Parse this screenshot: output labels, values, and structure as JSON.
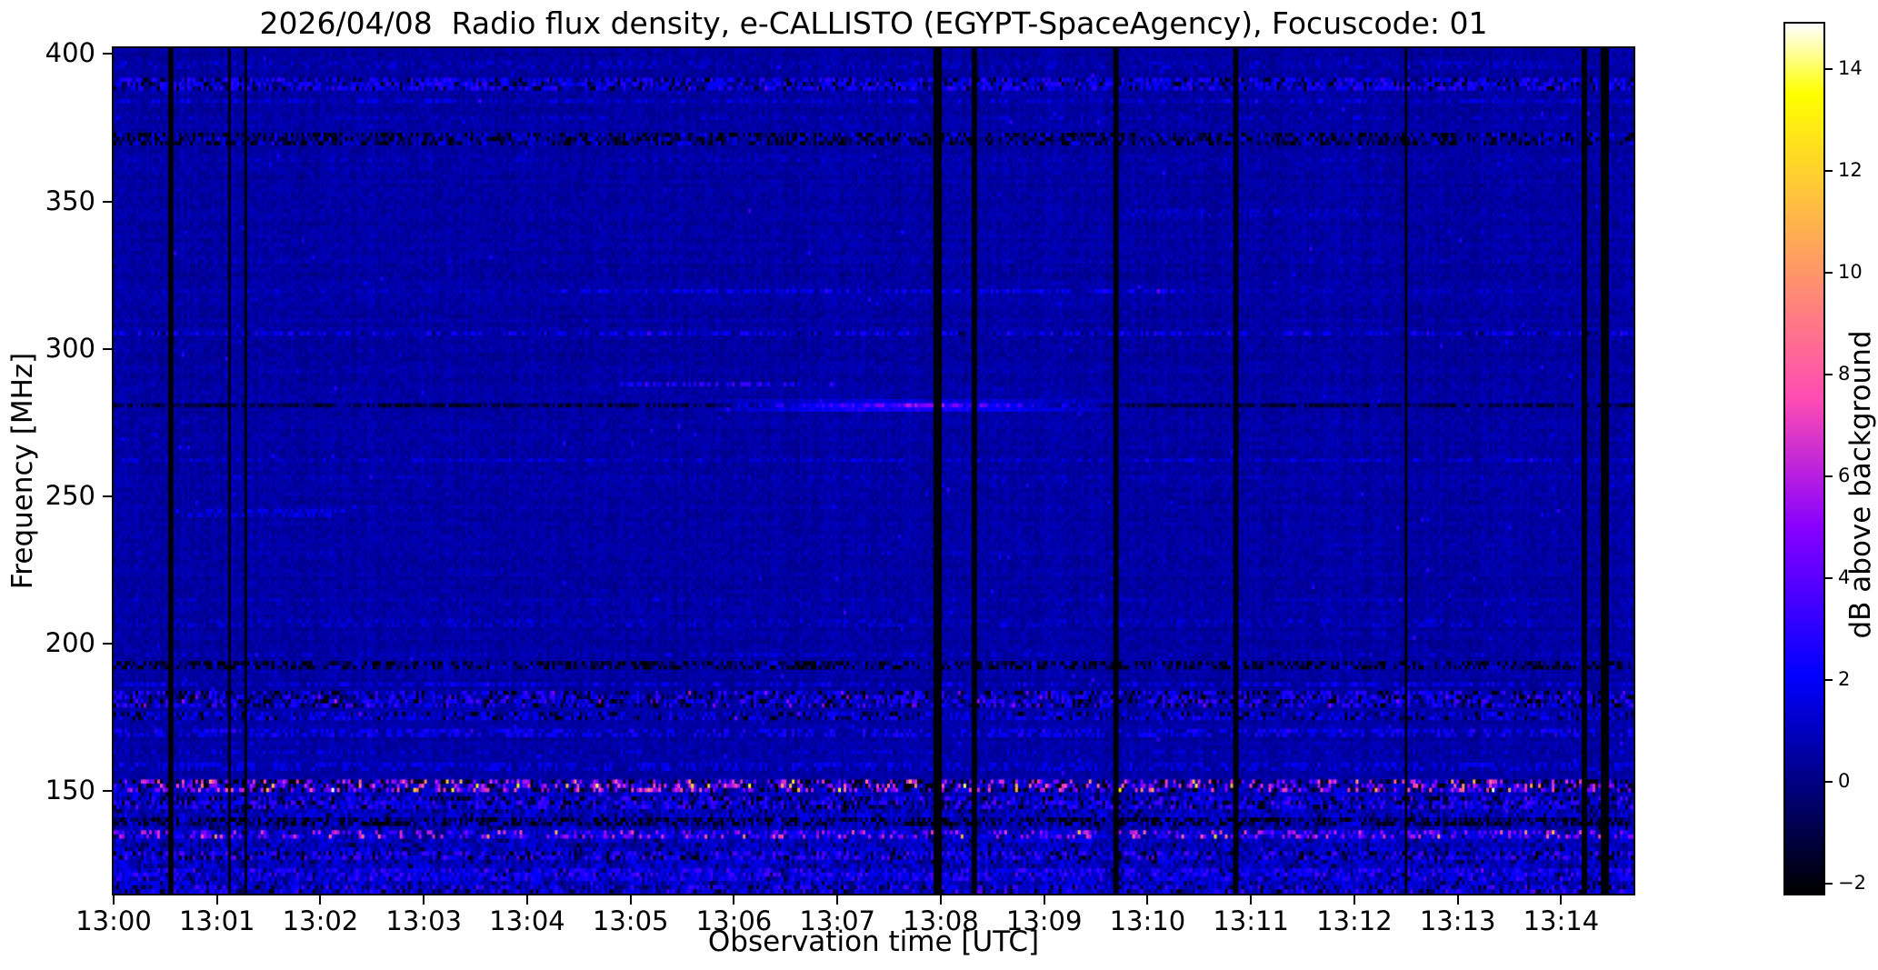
{
  "chart_data": {
    "type": "heatmap",
    "title": "2026/04/08  Radio flux density, e-CALLISTO (EGYPT-SpaceAgency), Focuscode: 01",
    "xlabel": "Observation time [UTC]",
    "ylabel": "Frequency [MHz]",
    "x_range_minutes": [
      0,
      14.7
    ],
    "y_range_mhz": [
      115,
      402
    ],
    "grid": false,
    "x_ticks": [
      {
        "m": 0,
        "label": "13:00"
      },
      {
        "m": 1,
        "label": "13:01"
      },
      {
        "m": 2,
        "label": "13:02"
      },
      {
        "m": 3,
        "label": "13:03"
      },
      {
        "m": 4,
        "label": "13:04"
      },
      {
        "m": 5,
        "label": "13:05"
      },
      {
        "m": 6,
        "label": "13:06"
      },
      {
        "m": 7,
        "label": "13:07"
      },
      {
        "m": 8,
        "label": "13:08"
      },
      {
        "m": 9,
        "label": "13:09"
      },
      {
        "m": 10,
        "label": "13:10"
      },
      {
        "m": 11,
        "label": "13:11"
      },
      {
        "m": 12,
        "label": "13:12"
      },
      {
        "m": 13,
        "label": "13:13"
      },
      {
        "m": 14,
        "label": "13:14"
      }
    ],
    "y_ticks": [
      {
        "v": 400,
        "label": "400"
      },
      {
        "v": 350,
        "label": "350"
      },
      {
        "v": 300,
        "label": "300"
      },
      {
        "v": 250,
        "label": "250"
      },
      {
        "v": 200,
        "label": "200"
      },
      {
        "v": 150,
        "label": "150"
      }
    ],
    "colorbar": {
      "label": "dB above background",
      "vmin": -2.2,
      "vmax": 14.9,
      "colormap": "gnuplot2",
      "ticks": [
        {
          "v": 14,
          "label": "14"
        },
        {
          "v": 12,
          "label": "12"
        },
        {
          "v": 10,
          "label": "10"
        },
        {
          "v": 8,
          "label": "8"
        },
        {
          "v": 6,
          "label": "6"
        },
        {
          "v": 4,
          "label": "4"
        },
        {
          "v": 2,
          "label": "2"
        },
        {
          "v": 0,
          "label": "0"
        },
        {
          "v": -2,
          "label": "−2"
        }
      ],
      "stops": [
        [
          0.0,
          0,
          0,
          0
        ],
        [
          0.125,
          0,
          0,
          128
        ],
        [
          0.25,
          0,
          0,
          255
        ],
        [
          0.34,
          72,
          0,
          255
        ],
        [
          0.42,
          135,
          0,
          255
        ],
        [
          0.5,
          199,
          41,
          214
        ],
        [
          0.57,
          255,
          77,
          179
        ],
        [
          0.66,
          255,
          122,
          133
        ],
        [
          0.75,
          255,
          168,
          87
        ],
        [
          0.84,
          255,
          214,
          41
        ],
        [
          0.92,
          255,
          255,
          0
        ],
        [
          0.96,
          255,
          255,
          128
        ],
        [
          1.0,
          255,
          255,
          255
        ]
      ]
    },
    "background_level_db": 0.55,
    "sparkle_prob": 0.004,
    "sparkle_amp": 2.5,
    "features": {
      "burst": {
        "f": 280.5,
        "f_sigma": 0.9,
        "t_peak": 7.7,
        "t_sigma": 1.05,
        "t0": 5.8,
        "t1": 9.8,
        "amp": 4.8,
        "description": "narrowband bright emission streak near 280 MHz between ~13:06 and ~13:09"
      },
      "vertical_dropouts": [
        {
          "t": 0.55,
          "w": 0.05
        },
        {
          "t": 1.12,
          "w": 0.035
        },
        {
          "t": 1.28,
          "w": 0.03
        },
        {
          "t": 7.97,
          "w": 0.06
        },
        {
          "t": 8.33,
          "w": 0.05
        },
        {
          "t": 9.7,
          "w": 0.05
        },
        {
          "t": 10.85,
          "w": 0.04
        },
        {
          "t": 12.5,
          "w": 0.05
        },
        {
          "t": 14.22,
          "w": 0.05
        },
        {
          "t": 14.42,
          "w": 0.06
        }
      ],
      "horizontal_bands": [
        {
          "f": 396,
          "hw": 1.2,
          "amp": 0.7,
          "density": 0.35
        },
        {
          "f": 390,
          "hw": 2.2,
          "amp": 1.8,
          "density": 0.6
        },
        {
          "f": 390,
          "hw": 2.2,
          "amp": -2.6,
          "density": 0.22
        },
        {
          "f": 384,
          "hw": 1.2,
          "amp": 0.9,
          "density": 0.35
        },
        {
          "f": 378,
          "hw": 1.0,
          "amp": 0.7,
          "density": 0.3
        },
        {
          "f": 371,
          "hw": 1.6,
          "amp": -2.4,
          "density": 0.45
        },
        {
          "f": 371,
          "hw": 1.6,
          "amp": 1.1,
          "density": 0.3
        },
        {
          "f": 364,
          "hw": 0.9,
          "amp": 0.6,
          "density": 0.3
        },
        {
          "f": 346,
          "hw": 1.0,
          "amp": 0.8,
          "density": 0.3,
          "t0": 9.8,
          "t1": 12.3
        },
        {
          "f": 330,
          "hw": 0.8,
          "amp": 0.5,
          "density": 0.25
        },
        {
          "f": 320,
          "hw": 0.9,
          "amp": 1.2,
          "density": 0.5,
          "t0": 4.3,
          "t1": 10.4
        },
        {
          "f": 320,
          "hw": 0.9,
          "amp": 0.5,
          "density": 0.3
        },
        {
          "f": 305,
          "hw": 1.1,
          "amp": 1.5,
          "density": 0.45
        },
        {
          "f": 305,
          "hw": 1.1,
          "amp": -1.2,
          "density": 0.15
        },
        {
          "f": 288,
          "hw": 0.9,
          "amp": 2.2,
          "density": 0.5,
          "t0": 4.9,
          "t1": 7.0
        },
        {
          "f": 281,
          "hw": 0.8,
          "amp": -1.6,
          "density": 0.75
        },
        {
          "f": 262,
          "hw": 0.9,
          "amp": 0.8,
          "density": 0.35
        },
        {
          "f": 256,
          "hw": 0.7,
          "amp": 0.5,
          "density": 0.25
        },
        {
          "f": 244,
          "hw": 0.9,
          "amp": 1.1,
          "density": 0.45,
          "t0": 0.7,
          "t1": 2.3
        },
        {
          "f": 230,
          "hw": 0.8,
          "amp": 0.4,
          "density": 0.2
        },
        {
          "f": 214,
          "hw": 0.8,
          "amp": 0.5,
          "density": 0.25
        },
        {
          "f": 207,
          "hw": 1.0,
          "amp": 0.8,
          "density": 0.35
        },
        {
          "f": 196,
          "hw": 0.8,
          "amp": 0.7,
          "density": 0.4
        },
        {
          "f": 192,
          "hw": 1.4,
          "amp": -2.4,
          "density": 0.5
        },
        {
          "f": 192,
          "hw": 1.4,
          "amp": 1.0,
          "density": 0.35
        },
        {
          "f": 186,
          "hw": 1.1,
          "amp": 1.2,
          "density": 0.4
        },
        {
          "f": 181,
          "hw": 2.4,
          "amp": 2.0,
          "density": 0.5,
          "hot_prob": 0.04,
          "hot_amp": 2.5
        },
        {
          "f": 181,
          "hw": 2.4,
          "amp": -2.6,
          "density": 0.3
        },
        {
          "f": 175,
          "hw": 1.8,
          "amp": 1.4,
          "density": 0.5
        },
        {
          "f": 175,
          "hw": 1.8,
          "amp": -2.2,
          "density": 0.25
        },
        {
          "f": 169,
          "hw": 1.4,
          "amp": 1.6,
          "density": 0.45
        },
        {
          "f": 163,
          "hw": 1.2,
          "amp": 0.9,
          "density": 0.4
        },
        {
          "f": 158,
          "hw": 1.2,
          "amp": 1.1,
          "density": 0.45
        },
        {
          "f": 152,
          "hw": 2.4,
          "amp": 4.8,
          "density": 0.4,
          "hot_prob": 0.1,
          "hot_amp": 5.5
        },
        {
          "f": 152,
          "hw": 2.4,
          "amp": -2.7,
          "density": 0.35
        },
        {
          "f": 146,
          "hw": 2.2,
          "amp": 1.7,
          "density": 0.5
        },
        {
          "f": 146,
          "hw": 2.2,
          "amp": -2.4,
          "density": 0.3
        },
        {
          "f": 139,
          "hw": 1.4,
          "amp": -2.5,
          "density": 0.5
        },
        {
          "f": 135,
          "hw": 1.6,
          "amp": 3.8,
          "density": 0.3,
          "hot_prob": 0.05,
          "hot_amp": 4
        },
        {
          "f": 135,
          "hw": 1.6,
          "amp": 1.2,
          "density": 0.4
        },
        {
          "f": 128,
          "hw": 2.0,
          "amp": 1.8,
          "density": 0.5
        },
        {
          "f": 128,
          "hw": 2.0,
          "amp": -2.3,
          "density": 0.25
        },
        {
          "f": 121,
          "hw": 2.2,
          "amp": 1.5,
          "density": 0.5
        },
        {
          "f": 116,
          "hw": 2.0,
          "amp": 1.6,
          "density": 0.5
        },
        {
          "f": 116,
          "hw": 2.0,
          "amp": -2.2,
          "density": 0.2
        },
        {
          "f": 132,
          "hw": 20,
          "amp": 0.9,
          "density": 0.55
        },
        {
          "f": 132,
          "hw": 20,
          "amp": -1.5,
          "density": 0.15
        }
      ]
    }
  }
}
